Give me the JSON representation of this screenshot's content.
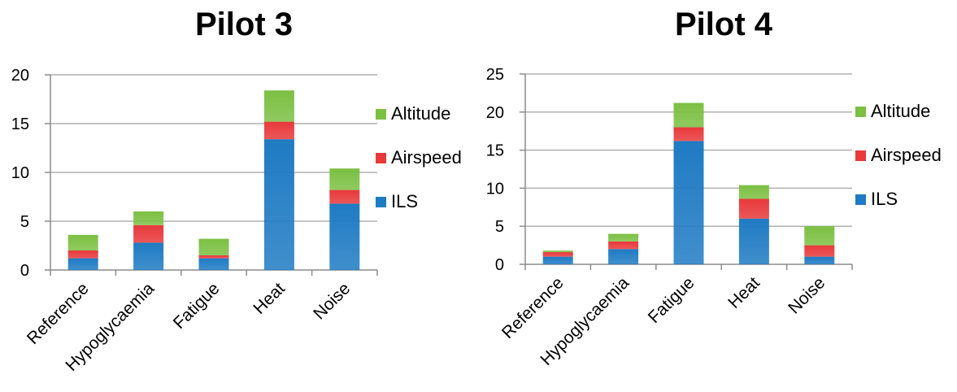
{
  "colors": {
    "ILS": "#1f7bc3",
    "Airspeed": "#e8393b",
    "Altitude": "#7cc043",
    "grid": "#b0b0b0",
    "axis": "#8c8c8c"
  },
  "legend": [
    {
      "name": "Altitude",
      "color": "#7cc043"
    },
    {
      "name": "Airspeed",
      "color": "#e8393b"
    },
    {
      "name": "ILS",
      "color": "#1f7bc3"
    }
  ],
  "chart_data": [
    {
      "type": "bar",
      "stacked": true,
      "title": "Pilot 3",
      "categories": [
        "Reference",
        "Hypoglycaemia",
        "Fatigue",
        "Heat",
        "Noise"
      ],
      "series": [
        {
          "name": "ILS",
          "values": [
            1.2,
            2.8,
            1.2,
            13.4,
            6.8
          ]
        },
        {
          "name": "Airspeed",
          "values": [
            0.8,
            1.8,
            0.3,
            1.8,
            1.4
          ]
        },
        {
          "name": "Altitude",
          "values": [
            1.6,
            1.4,
            1.7,
            3.2,
            2.2
          ]
        }
      ],
      "ylim": [
        0,
        20
      ],
      "yticks": [
        0,
        5,
        10,
        15,
        20
      ],
      "grid": true,
      "legend_position": "right"
    },
    {
      "type": "bar",
      "stacked": true,
      "title": "Pilot 4",
      "categories": [
        "Reference",
        "Hypoglycaemia",
        "Fatigue",
        "Heat",
        "Noise"
      ],
      "series": [
        {
          "name": "ILS",
          "values": [
            1.0,
            2.0,
            16.2,
            6.0,
            1.0
          ]
        },
        {
          "name": "Airspeed",
          "values": [
            0.6,
            1.0,
            1.8,
            2.6,
            1.5
          ]
        },
        {
          "name": "Altitude",
          "values": [
            0.2,
            1.0,
            3.2,
            1.8,
            2.5
          ]
        }
      ],
      "ylim": [
        0,
        25
      ],
      "yticks": [
        0,
        5,
        10,
        15,
        20,
        25
      ],
      "grid": true,
      "legend_position": "right"
    }
  ]
}
